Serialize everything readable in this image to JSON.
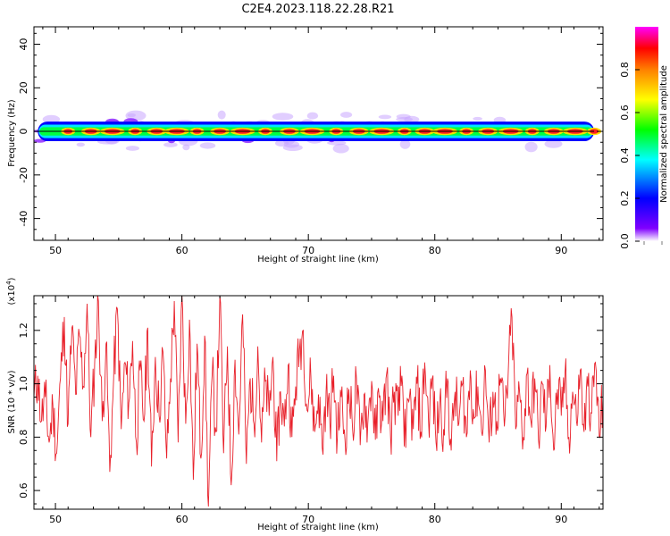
{
  "figure": {
    "title": "C2E4.2023.118.22.28.R21"
  },
  "chart_data": [
    {
      "type": "heatmap",
      "title": "C2E4.2023.118.22.28.R21",
      "xlabel": "Height of straight line (km)",
      "ylabel": "Frequency (Hz)",
      "xlim": [
        48.3,
        93.3
      ],
      "ylim": [
        -50,
        48
      ],
      "xticks": [
        50,
        60,
        70,
        80,
        90
      ],
      "yticks": [
        40,
        20,
        0,
        -20,
        -40
      ],
      "band_center_hz": 0,
      "band_halfwidth_hz": 5,
      "colorbar": {
        "label": "Normalized spectral amplitude",
        "range": [
          0,
          1
        ],
        "ticks": [
          "0.0",
          "0.2",
          "0.4",
          "0.6",
          "0.8"
        ],
        "colormap": [
          "#ffffff",
          "#8000ff",
          "#0000ff",
          "#00ffff",
          "#00ff00",
          "#ffff00",
          "#ff8000",
          "#ff0000",
          "#ff00ff"
        ]
      },
      "bright_spots_km": [
        51,
        52.8,
        54.5,
        56.3,
        58,
        59.6,
        61.2,
        63,
        64.8,
        66.6,
        68.5,
        70.3,
        72.2,
        74,
        75.8,
        77.6,
        79.2,
        80.8,
        82.5,
        84.2,
        86,
        87.7,
        89.4,
        91.1,
        92.6
      ]
    },
    {
      "type": "line",
      "xlabel": "Height of straight line (km)",
      "ylabel": "SNR (10 * v/v)",
      "yscale_label": "(x10",
      "yscale_exp": "4",
      "yscale_close": ")",
      "xlim": [
        48.3,
        93.3
      ],
      "ylim": [
        0.53,
        1.33
      ],
      "xticks": [
        50,
        60,
        70,
        80,
        90
      ],
      "yticks": [
        "0.6",
        "0.8",
        "1.0",
        "1.2"
      ],
      "line_color": "#e8202a",
      "series": [
        {
          "values": [
            [
              48.3,
              0.95
            ],
            [
              48.6,
              1.03
            ],
            [
              48.9,
              0.86
            ],
            [
              49.2,
              0.95
            ],
            [
              49.5,
              0.78
            ],
            [
              49.8,
              0.92
            ],
            [
              50.1,
              0.74
            ],
            [
              50.4,
              1.02
            ],
            [
              50.7,
              1.25
            ],
            [
              51.0,
              0.85
            ],
            [
              51.3,
              1.21
            ],
            [
              51.6,
              0.96
            ],
            [
              51.9,
              1.18
            ],
            [
              52.2,
              0.99
            ],
            [
              52.5,
              1.3
            ],
            [
              52.8,
              0.8
            ],
            [
              53.1,
              1.07
            ],
            [
              53.4,
              1.31
            ],
            [
              53.7,
              0.86
            ],
            [
              54.0,
              1.15
            ],
            [
              54.3,
              0.67
            ],
            [
              54.6,
              1.02
            ],
            [
              54.9,
              1.28
            ],
            [
              55.2,
              0.83
            ],
            [
              55.5,
              1.08
            ],
            [
              55.8,
              0.93
            ],
            [
              56.1,
              1.16
            ],
            [
              56.4,
              0.78
            ],
            [
              56.7,
              1.05
            ],
            [
              57.0,
              0.86
            ],
            [
              57.3,
              1.21
            ],
            [
              57.6,
              0.69
            ],
            [
              57.9,
              1.1
            ],
            [
              58.2,
              0.88
            ],
            [
              58.5,
              1.12
            ],
            [
              58.8,
              0.72
            ],
            [
              59.1,
              1.02
            ],
            [
              59.4,
              1.31
            ],
            [
              59.7,
              0.78
            ],
            [
              60.0,
              1.33
            ],
            [
              60.3,
              0.85
            ],
            [
              60.6,
              1.24
            ],
            [
              60.9,
              0.64
            ],
            [
              61.2,
              1.15
            ],
            [
              61.5,
              0.72
            ],
            [
              61.8,
              1.18
            ],
            [
              62.1,
              0.54
            ],
            [
              62.4,
              1.04
            ],
            [
              62.7,
              0.82
            ],
            [
              63.0,
              1.33
            ],
            [
              63.3,
              0.74
            ],
            [
              63.6,
              1.14
            ],
            [
              63.9,
              0.62
            ],
            [
              64.2,
              1.09
            ],
            [
              64.5,
              0.81
            ],
            [
              64.8,
              1.26
            ],
            [
              65.1,
              0.7
            ],
            [
              65.4,
              1.02
            ],
            [
              65.7,
              0.85
            ],
            [
              66.0,
              1.14
            ],
            [
              66.3,
              0.78
            ],
            [
              66.6,
              1.01
            ],
            [
              66.9,
              0.88
            ],
            [
              67.2,
              1.1
            ],
            [
              67.5,
              0.71
            ],
            [
              67.8,
              0.97
            ],
            [
              68.1,
              0.84
            ],
            [
              68.4,
              1.07
            ],
            [
              68.7,
              0.8
            ],
            [
              69.0,
              0.99
            ],
            [
              69.3,
              1.13
            ],
            [
              69.6,
              1.2
            ],
            [
              69.9,
              0.9
            ],
            [
              70.2,
              1.03
            ],
            [
              70.5,
              0.82
            ],
            [
              70.8,
              0.96
            ],
            [
              71.1,
              0.76
            ],
            [
              71.4,
              0.97
            ],
            [
              71.7,
              0.86
            ],
            [
              72.0,
              1.03
            ],
            [
              72.3,
              0.8
            ],
            [
              72.6,
              0.95
            ],
            [
              72.9,
              0.79
            ],
            [
              73.2,
              0.98
            ],
            [
              73.5,
              0.83
            ],
            [
              73.8,
              1.02
            ],
            [
              74.1,
              0.77
            ],
            [
              74.4,
              0.96
            ],
            [
              74.7,
              0.85
            ],
            [
              75.0,
              1.01
            ],
            [
              75.3,
              0.79
            ],
            [
              75.6,
              0.95
            ],
            [
              75.9,
              0.86
            ],
            [
              76.2,
              1.04
            ],
            [
              76.5,
              0.8
            ],
            [
              76.8,
              0.97
            ],
            [
              77.1,
              0.88
            ],
            [
              77.4,
              1.03
            ],
            [
              77.7,
              0.76
            ],
            [
              78.0,
              0.95
            ],
            [
              78.3,
              0.83
            ],
            [
              78.6,
              1.0
            ],
            [
              78.9,
              0.82
            ],
            [
              79.2,
              1.08
            ],
            [
              79.5,
              0.86
            ],
            [
              79.8,
              1.02
            ],
            [
              80.1,
              0.78
            ],
            [
              80.4,
              0.94
            ],
            [
              80.7,
              0.83
            ],
            [
              81.0,
              1.02
            ],
            [
              81.3,
              0.75
            ],
            [
              81.6,
              0.97
            ],
            [
              81.9,
              0.85
            ],
            [
              82.2,
              1.0
            ],
            [
              82.5,
              0.8
            ],
            [
              82.8,
              1.05
            ],
            [
              83.1,
              0.87
            ],
            [
              83.4,
              0.99
            ],
            [
              83.7,
              0.82
            ],
            [
              84.0,
              1.05
            ],
            [
              84.3,
              0.78
            ],
            [
              84.6,
              0.97
            ],
            [
              84.9,
              0.86
            ],
            [
              85.2,
              1.02
            ],
            [
              85.5,
              0.84
            ],
            [
              85.8,
              1.03
            ],
            [
              86.1,
              1.25
            ],
            [
              86.4,
              0.83
            ],
            [
              86.7,
              0.97
            ],
            [
              87.0,
              0.8
            ],
            [
              87.3,
              1.04
            ],
            [
              87.6,
              0.86
            ],
            [
              87.9,
              1.02
            ],
            [
              88.2,
              0.79
            ],
            [
              88.5,
              1.0
            ],
            [
              88.8,
              0.84
            ],
            [
              89.1,
              1.07
            ],
            [
              89.4,
              0.75
            ],
            [
              89.7,
              0.98
            ],
            [
              90.0,
              0.88
            ],
            [
              90.3,
              1.04
            ],
            [
              90.6,
              0.8
            ],
            [
              90.9,
              0.97
            ],
            [
              91.2,
              0.86
            ],
            [
              91.5,
              1.05
            ],
            [
              91.8,
              0.82
            ],
            [
              92.1,
              0.99
            ],
            [
              92.4,
              0.89
            ],
            [
              92.7,
              1.08
            ],
            [
              93.0,
              0.8
            ],
            [
              93.3,
              0.95
            ]
          ]
        }
      ]
    }
  ]
}
